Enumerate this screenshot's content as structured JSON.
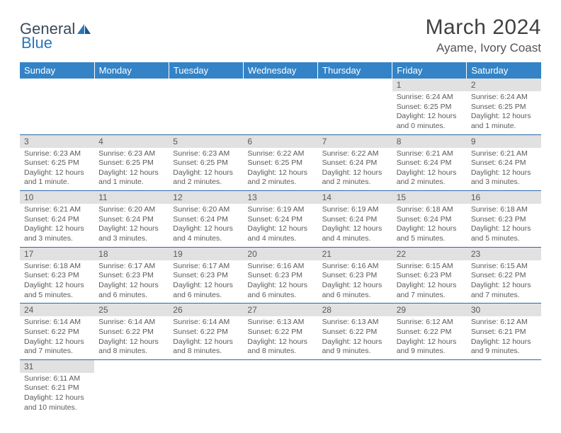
{
  "logo": {
    "text1": "General",
    "text2": "Blue"
  },
  "title": "March 2024",
  "location": "Ayame, Ivory Coast",
  "colors": {
    "header_bg": "#3383c6",
    "header_text": "#ffffff",
    "daynum_bg": "#e1e1e1",
    "text": "#5a5a5a",
    "row_border": "#2a6aa8"
  },
  "weekdays": [
    "Sunday",
    "Monday",
    "Tuesday",
    "Wednesday",
    "Thursday",
    "Friday",
    "Saturday"
  ],
  "weeks": [
    [
      null,
      null,
      null,
      null,
      null,
      {
        "n": "1",
        "sr": "Sunrise: 6:24 AM",
        "ss": "Sunset: 6:25 PM",
        "dl1": "Daylight: 12 hours",
        "dl2": "and 0 minutes."
      },
      {
        "n": "2",
        "sr": "Sunrise: 6:24 AM",
        "ss": "Sunset: 6:25 PM",
        "dl1": "Daylight: 12 hours",
        "dl2": "and 1 minute."
      }
    ],
    [
      {
        "n": "3",
        "sr": "Sunrise: 6:23 AM",
        "ss": "Sunset: 6:25 PM",
        "dl1": "Daylight: 12 hours",
        "dl2": "and 1 minute."
      },
      {
        "n": "4",
        "sr": "Sunrise: 6:23 AM",
        "ss": "Sunset: 6:25 PM",
        "dl1": "Daylight: 12 hours",
        "dl2": "and 1 minute."
      },
      {
        "n": "5",
        "sr": "Sunrise: 6:23 AM",
        "ss": "Sunset: 6:25 PM",
        "dl1": "Daylight: 12 hours",
        "dl2": "and 2 minutes."
      },
      {
        "n": "6",
        "sr": "Sunrise: 6:22 AM",
        "ss": "Sunset: 6:25 PM",
        "dl1": "Daylight: 12 hours",
        "dl2": "and 2 minutes."
      },
      {
        "n": "7",
        "sr": "Sunrise: 6:22 AM",
        "ss": "Sunset: 6:24 PM",
        "dl1": "Daylight: 12 hours",
        "dl2": "and 2 minutes."
      },
      {
        "n": "8",
        "sr": "Sunrise: 6:21 AM",
        "ss": "Sunset: 6:24 PM",
        "dl1": "Daylight: 12 hours",
        "dl2": "and 2 minutes."
      },
      {
        "n": "9",
        "sr": "Sunrise: 6:21 AM",
        "ss": "Sunset: 6:24 PM",
        "dl1": "Daylight: 12 hours",
        "dl2": "and 3 minutes."
      }
    ],
    [
      {
        "n": "10",
        "sr": "Sunrise: 6:21 AM",
        "ss": "Sunset: 6:24 PM",
        "dl1": "Daylight: 12 hours",
        "dl2": "and 3 minutes."
      },
      {
        "n": "11",
        "sr": "Sunrise: 6:20 AM",
        "ss": "Sunset: 6:24 PM",
        "dl1": "Daylight: 12 hours",
        "dl2": "and 3 minutes."
      },
      {
        "n": "12",
        "sr": "Sunrise: 6:20 AM",
        "ss": "Sunset: 6:24 PM",
        "dl1": "Daylight: 12 hours",
        "dl2": "and 4 minutes."
      },
      {
        "n": "13",
        "sr": "Sunrise: 6:19 AM",
        "ss": "Sunset: 6:24 PM",
        "dl1": "Daylight: 12 hours",
        "dl2": "and 4 minutes."
      },
      {
        "n": "14",
        "sr": "Sunrise: 6:19 AM",
        "ss": "Sunset: 6:24 PM",
        "dl1": "Daylight: 12 hours",
        "dl2": "and 4 minutes."
      },
      {
        "n": "15",
        "sr": "Sunrise: 6:18 AM",
        "ss": "Sunset: 6:24 PM",
        "dl1": "Daylight: 12 hours",
        "dl2": "and 5 minutes."
      },
      {
        "n": "16",
        "sr": "Sunrise: 6:18 AM",
        "ss": "Sunset: 6:23 PM",
        "dl1": "Daylight: 12 hours",
        "dl2": "and 5 minutes."
      }
    ],
    [
      {
        "n": "17",
        "sr": "Sunrise: 6:18 AM",
        "ss": "Sunset: 6:23 PM",
        "dl1": "Daylight: 12 hours",
        "dl2": "and 5 minutes."
      },
      {
        "n": "18",
        "sr": "Sunrise: 6:17 AM",
        "ss": "Sunset: 6:23 PM",
        "dl1": "Daylight: 12 hours",
        "dl2": "and 6 minutes."
      },
      {
        "n": "19",
        "sr": "Sunrise: 6:17 AM",
        "ss": "Sunset: 6:23 PM",
        "dl1": "Daylight: 12 hours",
        "dl2": "and 6 minutes."
      },
      {
        "n": "20",
        "sr": "Sunrise: 6:16 AM",
        "ss": "Sunset: 6:23 PM",
        "dl1": "Daylight: 12 hours",
        "dl2": "and 6 minutes."
      },
      {
        "n": "21",
        "sr": "Sunrise: 6:16 AM",
        "ss": "Sunset: 6:23 PM",
        "dl1": "Daylight: 12 hours",
        "dl2": "and 6 minutes."
      },
      {
        "n": "22",
        "sr": "Sunrise: 6:15 AM",
        "ss": "Sunset: 6:23 PM",
        "dl1": "Daylight: 12 hours",
        "dl2": "and 7 minutes."
      },
      {
        "n": "23",
        "sr": "Sunrise: 6:15 AM",
        "ss": "Sunset: 6:22 PM",
        "dl1": "Daylight: 12 hours",
        "dl2": "and 7 minutes."
      }
    ],
    [
      {
        "n": "24",
        "sr": "Sunrise: 6:14 AM",
        "ss": "Sunset: 6:22 PM",
        "dl1": "Daylight: 12 hours",
        "dl2": "and 7 minutes."
      },
      {
        "n": "25",
        "sr": "Sunrise: 6:14 AM",
        "ss": "Sunset: 6:22 PM",
        "dl1": "Daylight: 12 hours",
        "dl2": "and 8 minutes."
      },
      {
        "n": "26",
        "sr": "Sunrise: 6:14 AM",
        "ss": "Sunset: 6:22 PM",
        "dl1": "Daylight: 12 hours",
        "dl2": "and 8 minutes."
      },
      {
        "n": "27",
        "sr": "Sunrise: 6:13 AM",
        "ss": "Sunset: 6:22 PM",
        "dl1": "Daylight: 12 hours",
        "dl2": "and 8 minutes."
      },
      {
        "n": "28",
        "sr": "Sunrise: 6:13 AM",
        "ss": "Sunset: 6:22 PM",
        "dl1": "Daylight: 12 hours",
        "dl2": "and 9 minutes."
      },
      {
        "n": "29",
        "sr": "Sunrise: 6:12 AM",
        "ss": "Sunset: 6:22 PM",
        "dl1": "Daylight: 12 hours",
        "dl2": "and 9 minutes."
      },
      {
        "n": "30",
        "sr": "Sunrise: 6:12 AM",
        "ss": "Sunset: 6:21 PM",
        "dl1": "Daylight: 12 hours",
        "dl2": "and 9 minutes."
      }
    ],
    [
      {
        "n": "31",
        "sr": "Sunrise: 6:11 AM",
        "ss": "Sunset: 6:21 PM",
        "dl1": "Daylight: 12 hours",
        "dl2": "and 10 minutes."
      },
      null,
      null,
      null,
      null,
      null,
      null
    ]
  ]
}
